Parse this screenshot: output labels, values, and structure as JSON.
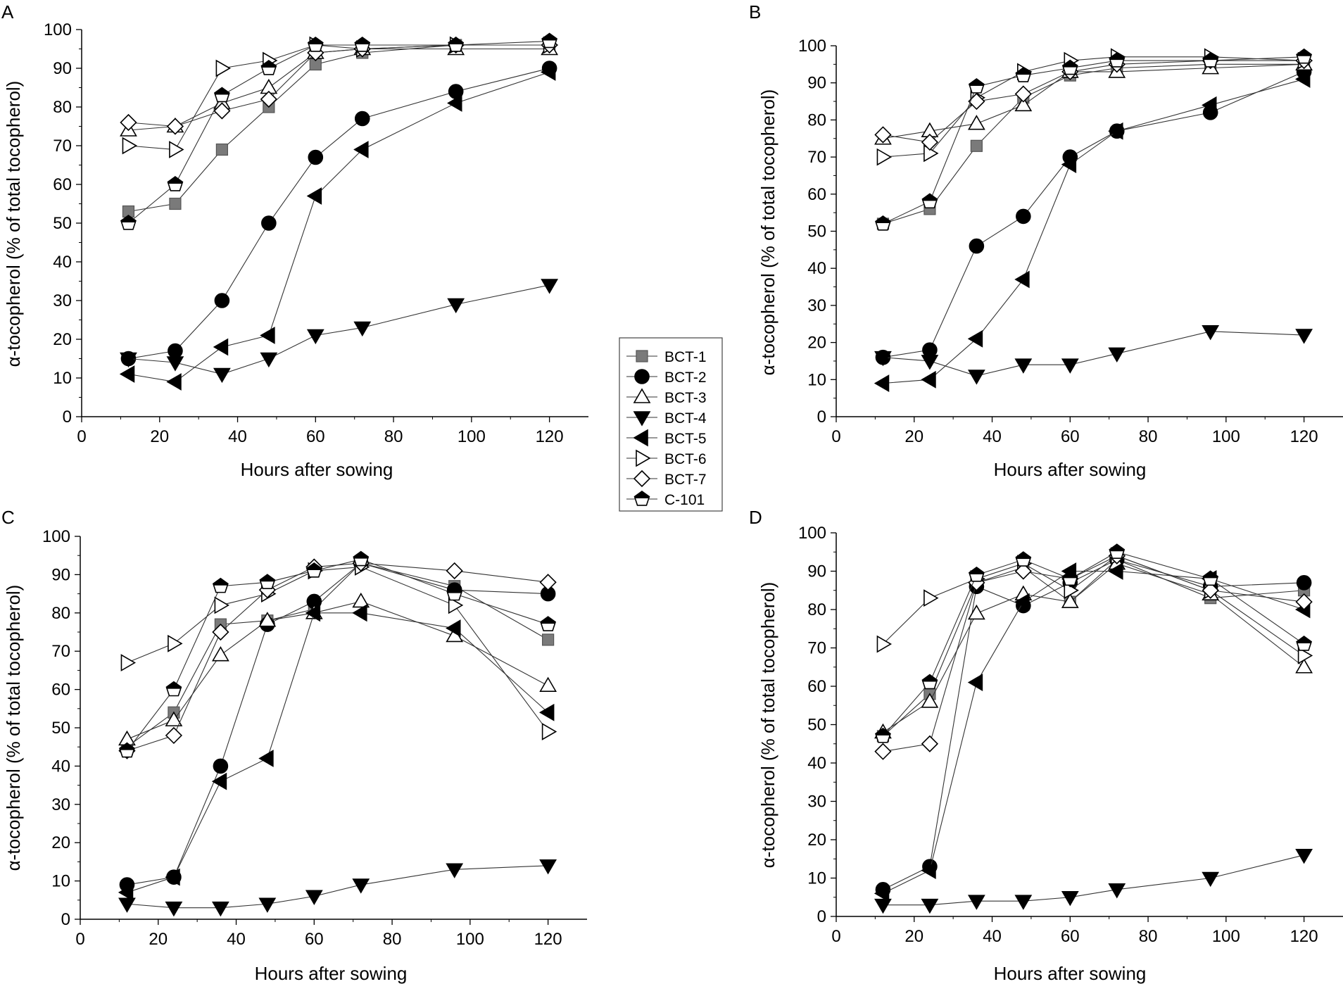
{
  "figure": {
    "legend": [
      {
        "key": "BCT-1",
        "label": "BCT-1"
      },
      {
        "key": "BCT-2",
        "label": "BCT-2"
      },
      {
        "key": "BCT-3",
        "label": "BCT-3"
      },
      {
        "key": "BCT-4",
        "label": "BCT-4"
      },
      {
        "key": "BCT-5",
        "label": "BCT-5"
      },
      {
        "key": "BCT-6",
        "label": "BCT-6"
      },
      {
        "key": "BCT-7",
        "label": "BCT-7"
      },
      {
        "key": "C-101",
        "label": "C-101"
      }
    ]
  },
  "chart_data": [
    {
      "panel": "A",
      "type": "line",
      "xlabel": "Hours after sowing",
      "ylabel": "α-tocopherol (% of total tocopherol)",
      "xlim": [
        0,
        130
      ],
      "ylim": [
        0,
        100
      ],
      "xticks": [
        0,
        20,
        40,
        60,
        80,
        100,
        120
      ],
      "yticks": [
        0,
        10,
        20,
        30,
        40,
        50,
        60,
        70,
        80,
        90,
        100
      ],
      "x": [
        12,
        24,
        36,
        48,
        60,
        72,
        96,
        120
      ],
      "series": [
        {
          "name": "BCT-1",
          "marker": "square-gray",
          "values": [
            53,
            55,
            69,
            80,
            91,
            94,
            96,
            96
          ]
        },
        {
          "name": "BCT-2",
          "marker": "circle-filled",
          "values": [
            15,
            17,
            30,
            50,
            67,
            77,
            84,
            90
          ]
        },
        {
          "name": "BCT-3",
          "marker": "triangle-up-open",
          "values": [
            74,
            75,
            81,
            85,
            94,
            95,
            95,
            95
          ]
        },
        {
          "name": "BCT-4",
          "marker": "triangle-down-filled",
          "values": [
            15,
            14,
            11,
            15,
            21,
            23,
            29,
            34
          ]
        },
        {
          "name": "BCT-5",
          "marker": "triangle-left-filled",
          "values": [
            11,
            9,
            18,
            21,
            57,
            69,
            81,
            89
          ]
        },
        {
          "name": "BCT-6",
          "marker": "triangle-right-open",
          "values": [
            70,
            69,
            90,
            92,
            96,
            95,
            96,
            96
          ]
        },
        {
          "name": "BCT-7",
          "marker": "diamond-open",
          "values": [
            76,
            75,
            79,
            82,
            94,
            95,
            96,
            96
          ]
        },
        {
          "name": "C-101",
          "marker": "pentagon-half",
          "values": [
            50,
            60,
            83,
            90,
            96,
            96,
            96,
            97
          ]
        }
      ]
    },
    {
      "panel": "B",
      "type": "line",
      "xlabel": "Hours after sowing",
      "ylabel": "α-tocopherol (% of total tocopherol)",
      "xlim": [
        0,
        130
      ],
      "ylim": [
        0,
        100
      ],
      "xticks": [
        0,
        20,
        40,
        60,
        80,
        100,
        120
      ],
      "yticks": [
        0,
        10,
        20,
        30,
        40,
        50,
        60,
        70,
        80,
        90,
        100
      ],
      "x": [
        12,
        24,
        36,
        48,
        60,
        72,
        96,
        120
      ],
      "series": [
        {
          "name": "BCT-1",
          "marker": "square-gray",
          "values": [
            52,
            56,
            73,
            86,
            92,
            94,
            95,
            95
          ]
        },
        {
          "name": "BCT-2",
          "marker": "circle-filled",
          "values": [
            16,
            18,
            46,
            54,
            70,
            77,
            82,
            93
          ]
        },
        {
          "name": "BCT-3",
          "marker": "triangle-up-open",
          "values": [
            75,
            77,
            79,
            84,
            93,
            93,
            94,
            95
          ]
        },
        {
          "name": "BCT-4",
          "marker": "triangle-down-filled",
          "values": [
            16,
            15,
            11,
            14,
            14,
            17,
            23,
            22
          ]
        },
        {
          "name": "BCT-5",
          "marker": "triangle-left-filled",
          "values": [
            9,
            10,
            21,
            37,
            68,
            77,
            84,
            91
          ]
        },
        {
          "name": "BCT-6",
          "marker": "triangle-right-open",
          "values": [
            70,
            71,
            86,
            93,
            96,
            97,
            97,
            96
          ]
        },
        {
          "name": "BCT-7",
          "marker": "diamond-open",
          "values": [
            76,
            74,
            85,
            87,
            93,
            95,
            96,
            96
          ]
        },
        {
          "name": "C-101",
          "marker": "pentagon-half",
          "values": [
            52,
            58,
            89,
            92,
            94,
            96,
            96,
            97
          ]
        }
      ]
    },
    {
      "panel": "C",
      "type": "line",
      "xlabel": "Hours after sowing",
      "ylabel": "α-tocopherol (% of total tocopherol)",
      "xlim": [
        0,
        130
      ],
      "ylim": [
        0,
        100
      ],
      "xticks": [
        0,
        20,
        40,
        60,
        80,
        100,
        120
      ],
      "yticks": [
        0,
        10,
        20,
        30,
        40,
        50,
        60,
        70,
        80,
        90,
        100
      ],
      "x": [
        12,
        24,
        36,
        48,
        60,
        72,
        96,
        120
      ],
      "series": [
        {
          "name": "BCT-1",
          "marker": "square-gray",
          "values": [
            45,
            54,
            77,
            78,
            81,
            93,
            87,
            73
          ]
        },
        {
          "name": "BCT-2",
          "marker": "circle-filled",
          "values": [
            9,
            11,
            40,
            77,
            83,
            93,
            86,
            85
          ]
        },
        {
          "name": "BCT-3",
          "marker": "triangle-up-open",
          "values": [
            47,
            52,
            69,
            78,
            80,
            83,
            74,
            61
          ]
        },
        {
          "name": "BCT-4",
          "marker": "triangle-down-filled",
          "values": [
            4,
            3,
            3,
            4,
            6,
            9,
            13,
            14
          ]
        },
        {
          "name": "BCT-5",
          "marker": "triangle-left-filled",
          "values": [
            7,
            11,
            36,
            42,
            80,
            80,
            76,
            54
          ]
        },
        {
          "name": "BCT-6",
          "marker": "triangle-right-open",
          "values": [
            67,
            72,
            82,
            85,
            91,
            92,
            82,
            49
          ]
        },
        {
          "name": "BCT-7",
          "marker": "diamond-open",
          "values": [
            44,
            48,
            75,
            86,
            92,
            93,
            91,
            88
          ]
        },
        {
          "name": "C-101",
          "marker": "pentagon-half",
          "values": [
            44,
            60,
            87,
            88,
            91,
            94,
            85,
            77
          ]
        }
      ]
    },
    {
      "panel": "D",
      "type": "line",
      "xlabel": "Hours after sowing",
      "ylabel": "α-tocopherol (% of total tocopherol)",
      "xlim": [
        0,
        130
      ],
      "ylim": [
        0,
        100
      ],
      "xticks": [
        0,
        20,
        40,
        60,
        80,
        100,
        120
      ],
      "yticks": [
        0,
        10,
        20,
        30,
        40,
        50,
        60,
        70,
        80,
        90,
        100
      ],
      "x": [
        12,
        24,
        36,
        48,
        60,
        72,
        96,
        120
      ],
      "series": [
        {
          "name": "BCT-1",
          "marker": "square-gray",
          "values": [
            47,
            58,
            87,
            91,
            82,
            93,
            83,
            85
          ]
        },
        {
          "name": "BCT-2",
          "marker": "circle-filled",
          "values": [
            7,
            13,
            86,
            81,
            87,
            93,
            86,
            87
          ]
        },
        {
          "name": "BCT-3",
          "marker": "triangle-up-open",
          "values": [
            48,
            56,
            79,
            84,
            82,
            92,
            84,
            65
          ]
        },
        {
          "name": "BCT-4",
          "marker": "triangle-down-filled",
          "values": [
            3,
            3,
            4,
            4,
            5,
            7,
            10,
            16
          ]
        },
        {
          "name": "BCT-5",
          "marker": "triangle-left-filled",
          "values": [
            6,
            12,
            61,
            82,
            90,
            90,
            88,
            80
          ]
        },
        {
          "name": "BCT-6",
          "marker": "triangle-right-open",
          "values": [
            71,
            83,
            88,
            92,
            85,
            94,
            85,
            68
          ]
        },
        {
          "name": "BCT-7",
          "marker": "diamond-open",
          "values": [
            43,
            45,
            87,
            90,
            88,
            94,
            85,
            82
          ]
        },
        {
          "name": "C-101",
          "marker": "pentagon-half",
          "values": [
            47,
            61,
            89,
            93,
            88,
            95,
            88,
            71
          ]
        }
      ]
    }
  ]
}
